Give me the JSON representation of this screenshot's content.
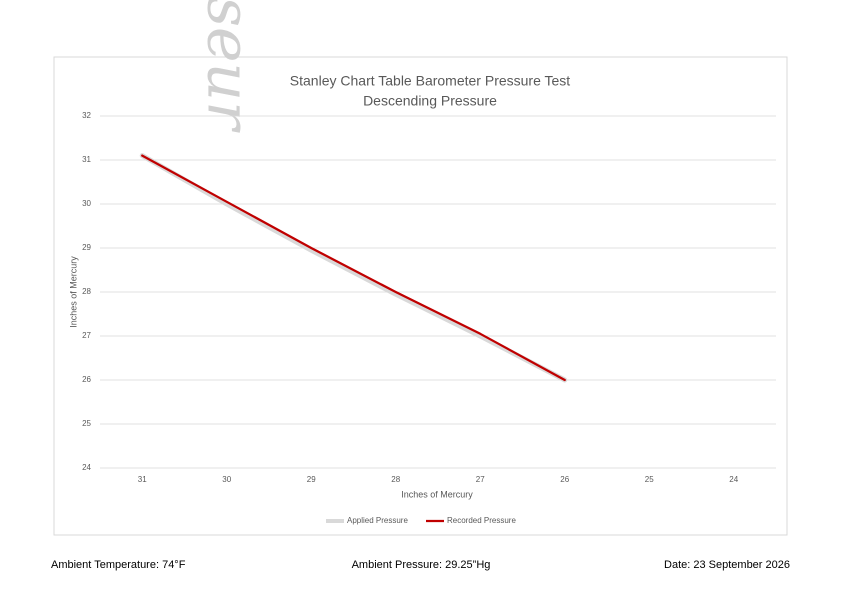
{
  "chart_data": {
    "type": "line",
    "title": "Stanley Chart Table Barometer Pressure Test",
    "subtitle": "Descending Pressure",
    "x_label": "Inches of Mercury",
    "y_label": "Inches of Mercury",
    "watermark": "Vavasseur",
    "categories": [
      "31",
      "30",
      "29",
      "28",
      "27",
      "26",
      "25",
      "24"
    ],
    "series": [
      {
        "name": "Applied Pressure",
        "color": "#d9d9d9",
        "values": [
          31.1,
          30.0,
          28.95,
          27.95,
          27.0,
          26.0,
          null,
          null
        ]
      },
      {
        "name": "Recorded Pressure",
        "color": "#c00000",
        "values": [
          31.1,
          30.05,
          29.0,
          28.0,
          27.05,
          26.0,
          null,
          null
        ]
      }
    ],
    "ylim": [
      24,
      32
    ],
    "yticks": [
      24,
      25,
      26,
      27,
      28,
      29,
      30,
      31,
      32
    ],
    "grid": true,
    "legend": "bottom"
  },
  "footer": {
    "temperature": "Ambient Temperature: 74°F",
    "pressure": "Ambient Pressure: 29.25”Hg",
    "date": "Date: 23 September 2026"
  }
}
